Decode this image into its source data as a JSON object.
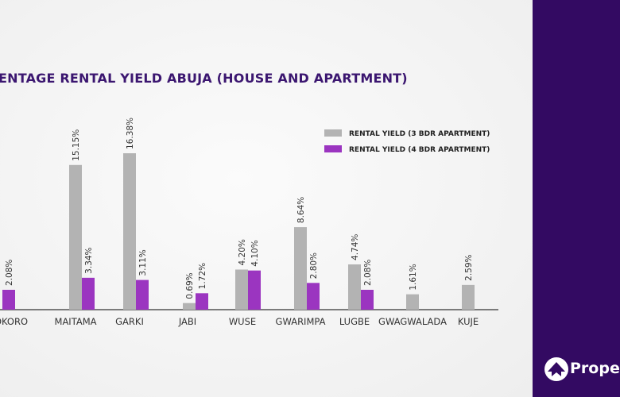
{
  "chart_data": {
    "type": "bar",
    "title": "ENTAGE RENTAL YIELD ABUJA (HOUSE AND APARTMENT)",
    "categories": [
      "OKORO",
      "MAITAMA",
      "GARKI",
      "JABI",
      "WUSE",
      "GWARIMPA",
      "LUGBE",
      "GWAGWALADA",
      "KUJE"
    ],
    "series": [
      {
        "name": "RENTAL YIELD (3 BDR APARTMENT)",
        "color": "#b3b3b3",
        "values": [
          null,
          15.15,
          16.38,
          0.69,
          4.2,
          8.64,
          4.74,
          1.61,
          2.59
        ]
      },
      {
        "name": "RENTAL YIELD (4 BDR APARTMENT)",
        "color": "#9b35c0",
        "values": [
          2.08,
          3.34,
          3.11,
          1.72,
          4.1,
          2.8,
          2.08,
          null,
          null
        ]
      }
    ],
    "value_suffix": "%",
    "ylim": [
      0,
      17
    ],
    "grid": false,
    "legend": "top-right"
  },
  "brand": {
    "name": "Propert",
    "panel_color": "#330a62"
  }
}
